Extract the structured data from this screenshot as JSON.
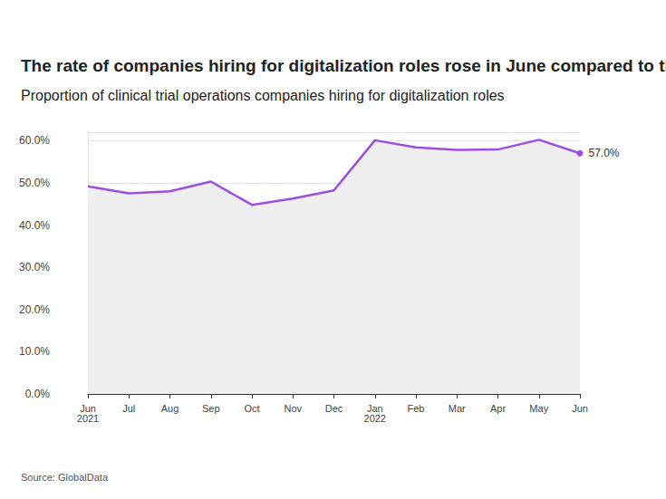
{
  "chart_data": {
    "type": "line",
    "title": "The rate of companies hiring for digitalization roles rose in June compared to the same time last year",
    "subtitle": "Proportion of clinical trial operations companies hiring for digitalization roles",
    "source": "Source: GlobalData",
    "categories": [
      "Jun\n2021",
      "Jul",
      "Aug",
      "Sep",
      "Oct",
      "Nov",
      "Dec",
      "Jan\n2022",
      "Feb",
      "Mar",
      "Apr",
      "May",
      "Jun"
    ],
    "values": [
      49.2,
      47.5,
      48.0,
      50.3,
      44.8,
      46.3,
      48.2,
      60.1,
      58.4,
      57.8,
      57.9,
      60.2,
      57.0
    ],
    "value_labels": [
      null,
      null,
      null,
      null,
      null,
      null,
      null,
      null,
      null,
      null,
      null,
      null,
      "57.0%"
    ],
    "color": "#9b4fe0",
    "ylim": [
      0,
      62
    ],
    "yticks": [
      {
        "value": 0,
        "label": "0.0%"
      },
      {
        "value": 10,
        "label": "10.0%"
      },
      {
        "value": 20,
        "label": "20.0%"
      },
      {
        "value": 30,
        "label": "30.0%"
      },
      {
        "value": 40,
        "label": "40.0%"
      },
      {
        "value": 50,
        "label": "50.0%"
      },
      {
        "value": 60,
        "label": "60.0%"
      }
    ],
    "grid": true
  }
}
